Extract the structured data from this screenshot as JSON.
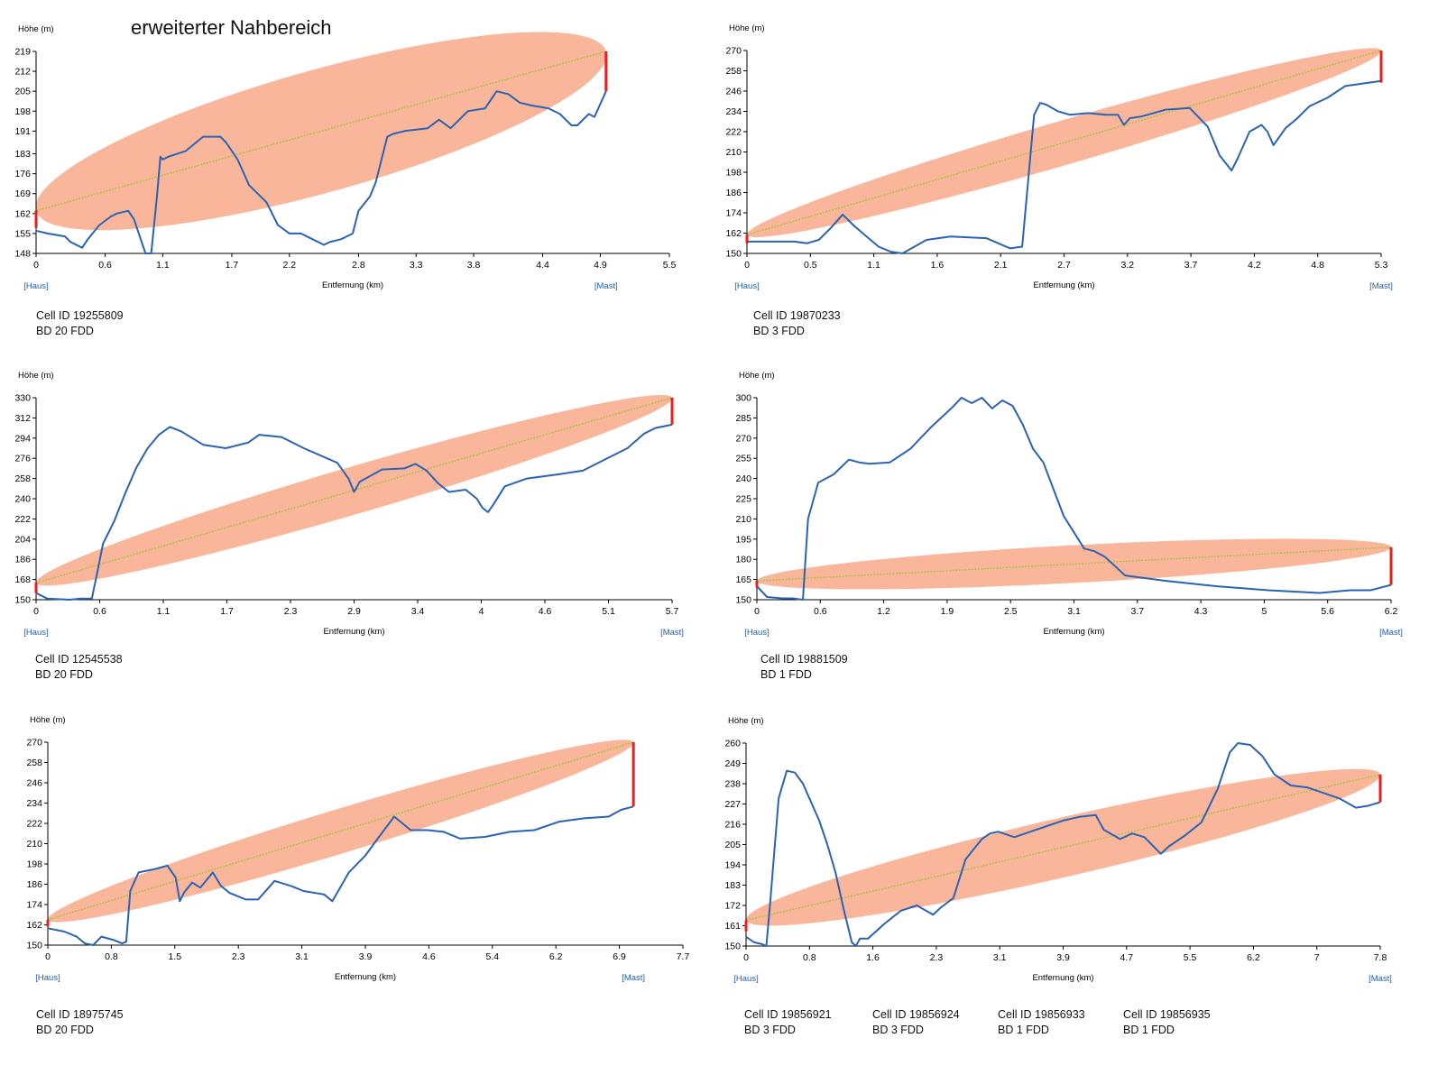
{
  "page_title": "erweiterter Nahbereich",
  "colors": {
    "profile": "#2a63b4",
    "fresnel": "#f9a98a",
    "sightline": "#a7c43a",
    "antenna": "#ee1c1c",
    "link": "#1f5fb8"
  },
  "chart_data": [
    {
      "type": "line",
      "title": "",
      "ylabel": "Höhe (m)",
      "xlabel": "Entfernung (km)",
      "left_label": "[Haus]",
      "right_label": "[Mast]",
      "xlim": [
        0,
        5.5
      ],
      "ylim": [
        148,
        219
      ],
      "xticks": [
        0,
        0.6,
        1.1,
        1.7,
        2.2,
        2.8,
        3.3,
        3.8,
        4.4,
        4.9,
        5.5
      ],
      "xtick_labels": [
        "0",
        "0.6",
        "1.1",
        "1.7",
        "2.2",
        "2.8",
        "3.3",
        "3.8",
        "4.4",
        "4.9",
        "5.5"
      ],
      "yticks": [
        148,
        155,
        162,
        169,
        176,
        183,
        191,
        198,
        205,
        212,
        219
      ],
      "ytick_labels": [
        "148",
        "155",
        "162",
        "169",
        "176",
        "183",
        "191",
        "198",
        "205",
        "212",
        "219"
      ],
      "sightline": {
        "x0": 0,
        "y0": 163,
        "x1": 4.95,
        "y1": 219
      },
      "fresnel_radius": 21.5,
      "start_mast": {
        "x": 0,
        "y_bottom": 157,
        "y_top": 163
      },
      "end_mast": {
        "x": 4.95,
        "y_bottom": 205,
        "y_top": 219
      },
      "profile": {
        "x": [
          0,
          0.1,
          0.25,
          0.3,
          0.4,
          0.45,
          0.55,
          0.65,
          0.7,
          0.8,
          0.85,
          0.95,
          1.0,
          1.05,
          1.08,
          1.1,
          1.15,
          1.3,
          1.45,
          1.6,
          1.65,
          1.75,
          1.85,
          2.0,
          2.1,
          2.2,
          2.3,
          2.4,
          2.5,
          2.55,
          2.65,
          2.75,
          2.8,
          2.9,
          2.95,
          3.05,
          3.1,
          3.2,
          3.4,
          3.5,
          3.6,
          3.75,
          3.9,
          4.0,
          4.1,
          4.2,
          4.3,
          4.45,
          4.55,
          4.65,
          4.7,
          4.8,
          4.85,
          4.95
        ],
        "y": [
          156,
          155,
          154,
          152,
          150,
          153,
          158,
          161,
          162,
          163,
          160,
          148,
          148,
          168,
          182,
          181,
          182,
          184,
          189,
          189,
          187,
          181,
          172,
          166,
          158,
          155,
          155,
          153,
          151,
          152,
          153,
          155,
          163,
          168,
          173,
          189,
          190,
          191,
          192,
          195,
          192,
          198,
          199,
          205,
          204,
          201,
          200,
          199,
          197,
          193,
          193,
          197,
          196,
          205
        ]
      }
    },
    {
      "type": "line",
      "title": "",
      "ylabel": "Höhe (m)",
      "xlabel": "Entfernung (km)",
      "left_label": "[Haus]",
      "right_label": "[Mast]",
      "xlim": [
        0,
        5.3
      ],
      "ylim": [
        150,
        270
      ],
      "xticks": [
        0,
        0.53,
        1.06,
        1.59,
        2.12,
        2.65,
        3.18,
        3.71,
        4.24,
        4.77,
        5.3
      ],
      "xtick_labels": [
        "0",
        "0.5",
        "1.1",
        "1.6",
        "2.1",
        "2.7",
        "3.2",
        "3.7",
        "4.2",
        "4.8",
        "5.3"
      ],
      "yticks": [
        150,
        162,
        174,
        186,
        198,
        210,
        222,
        234,
        246,
        258,
        270
      ],
      "ytick_labels": [
        "150",
        "162",
        "174",
        "186",
        "198",
        "210",
        "222",
        "234",
        "246",
        "258",
        "270"
      ],
      "sightline": {
        "x0": 0,
        "y0": 161,
        "x1": 5.3,
        "y1": 270
      },
      "fresnel_radius": 13,
      "start_mast": {
        "x": 0,
        "y_bottom": 156,
        "y_top": 161
      },
      "end_mast": {
        "x": 5.3,
        "y_bottom": 251,
        "y_top": 270
      },
      "profile": {
        "x": [
          0,
          0.2,
          0.4,
          0.5,
          0.6,
          0.7,
          0.8,
          0.9,
          1.0,
          1.1,
          1.2,
          1.3,
          1.5,
          1.7,
          2.0,
          2.2,
          2.3,
          2.4,
          2.45,
          2.5,
          2.6,
          2.7,
          2.85,
          3.0,
          3.1,
          3.15,
          3.2,
          3.3,
          3.5,
          3.7,
          3.85,
          3.95,
          4.05,
          4.1,
          4.2,
          4.3,
          4.35,
          4.4,
          4.5,
          4.6,
          4.7,
          4.85,
          5.0,
          5.2,
          5.3
        ],
        "y": [
          157,
          157,
          157,
          156,
          158,
          165,
          173,
          166,
          160,
          154,
          151,
          150,
          158,
          160,
          159,
          153,
          154,
          232,
          239,
          238,
          234,
          232,
          233,
          232,
          232,
          226,
          230,
          231,
          235,
          236,
          225,
          208,
          199,
          206,
          222,
          226,
          222,
          214,
          224,
          230,
          237,
          242,
          249,
          251,
          252
        ]
      }
    },
    {
      "type": "line",
      "title": "",
      "ylabel": "Höhe (m)",
      "xlabel": "Entfernung (km)",
      "left_label": "[Haus]",
      "right_label": "[Mast]",
      "xlim": [
        0,
        5.7
      ],
      "ylim": [
        150,
        330
      ],
      "xticks": [
        0,
        0.57,
        1.14,
        1.71,
        2.28,
        2.85,
        3.42,
        3.99,
        4.56,
        5.13,
        5.7
      ],
      "xtick_labels": [
        "0",
        "0.6",
        "1.1",
        "1.7",
        "2.3",
        "2.9",
        "3.4",
        "4",
        "4.6",
        "5.1",
        "5.7"
      ],
      "yticks": [
        150,
        168,
        186,
        204,
        222,
        240,
        258,
        276,
        294,
        312,
        330
      ],
      "ytick_labels": [
        "150",
        "168",
        "186",
        "204",
        "222",
        "240",
        "258",
        "276",
        "294",
        "312",
        "330"
      ],
      "sightline": {
        "x0": 0,
        "y0": 165,
        "x1": 5.7,
        "y1": 330
      },
      "fresnel_radius": 21,
      "start_mast": {
        "x": 0,
        "y_bottom": 156,
        "y_top": 165
      },
      "end_mast": {
        "x": 5.7,
        "y_bottom": 306,
        "y_top": 330
      },
      "profile": {
        "x": [
          0,
          0.1,
          0.3,
          0.4,
          0.5,
          0.55,
          0.6,
          0.7,
          0.8,
          0.9,
          1.0,
          1.1,
          1.2,
          1.3,
          1.5,
          1.7,
          1.9,
          2.0,
          2.2,
          2.4,
          2.7,
          2.8,
          2.85,
          2.9,
          3.1,
          3.3,
          3.4,
          3.5,
          3.6,
          3.7,
          3.85,
          3.95,
          4.0,
          4.05,
          4.1,
          4.2,
          4.4,
          4.7,
          4.9,
          5.1,
          5.3,
          5.45,
          5.55,
          5.7
        ],
        "y": [
          156,
          151,
          150,
          151,
          151,
          175,
          200,
          220,
          245,
          268,
          285,
          297,
          304,
          300,
          288,
          285,
          290,
          297,
          295,
          285,
          272,
          258,
          246,
          255,
          266,
          267,
          271,
          265,
          254,
          246,
          248,
          240,
          232,
          228,
          235,
          251,
          258,
          262,
          265,
          275,
          285,
          298,
          303,
          306
        ]
      }
    },
    {
      "type": "line",
      "title": "",
      "ylabel": "Höhe (m)",
      "xlabel": "Entfernung (km)",
      "left_label": "[Haus]",
      "right_label": "[Mast]",
      "xlim": [
        0,
        6.2
      ],
      "ylim": [
        150,
        300
      ],
      "xticks": [
        0,
        0.62,
        1.24,
        1.86,
        2.48,
        3.1,
        3.72,
        4.34,
        4.96,
        5.58,
        6.2
      ],
      "xtick_labels": [
        "0",
        "0.6",
        "1.2",
        "1.9",
        "2.5",
        "3.1",
        "3.7",
        "4.3",
        "5",
        "5.6",
        "6.2"
      ],
      "yticks": [
        150,
        165,
        180,
        195,
        210,
        225,
        240,
        255,
        270,
        285,
        300
      ],
      "ytick_labels": [
        "150",
        "165",
        "180",
        "195",
        "210",
        "225",
        "240",
        "255",
        "270",
        "285",
        "300"
      ],
      "sightline": {
        "x0": 0,
        "y0": 164,
        "x1": 6.2,
        "y1": 189
      },
      "fresnel_radius": 14,
      "start_mast": {
        "x": 0,
        "y_bottom": 159,
        "y_top": 164
      },
      "end_mast": {
        "x": 6.2,
        "y_bottom": 161,
        "y_top": 189
      },
      "profile": {
        "x": [
          0,
          0.1,
          0.25,
          0.35,
          0.45,
          0.5,
          0.6,
          0.75,
          0.9,
          1.0,
          1.1,
          1.3,
          1.5,
          1.7,
          1.9,
          2.0,
          2.1,
          2.2,
          2.3,
          2.4,
          2.5,
          2.6,
          2.7,
          2.8,
          2.9,
          3.0,
          3.1,
          3.2,
          3.3,
          3.4,
          3.5,
          3.6,
          3.8,
          4.0,
          4.5,
          5.0,
          5.5,
          5.8,
          6.0,
          6.2
        ],
        "y": [
          160,
          152,
          151,
          151,
          150,
          210,
          237,
          243,
          254,
          252,
          251,
          252,
          262,
          278,
          292,
          300,
          296,
          300,
          292,
          298,
          294,
          280,
          262,
          252,
          232,
          212,
          200,
          188,
          186,
          182,
          175,
          168,
          166,
          164,
          160,
          157,
          155,
          157,
          157,
          161
        ]
      }
    },
    {
      "type": "line",
      "title": "",
      "ylabel": "Höhe (m)",
      "xlabel": "Entfernung (km)",
      "left_label": "[Haus]",
      "right_label": "[Mast]",
      "xlim": [
        0,
        7.7
      ],
      "ylim": [
        150,
        270
      ],
      "xticks": [
        0,
        0.77,
        1.54,
        2.31,
        3.08,
        3.85,
        4.62,
        5.39,
        6.16,
        6.93,
        7.7
      ],
      "xtick_labels": [
        "0",
        "0.8",
        "1.5",
        "2.3",
        "3.1",
        "3.9",
        "4.6",
        "5.4",
        "6.2",
        "6.9",
        "7.7"
      ],
      "yticks": [
        150,
        162,
        174,
        186,
        198,
        210,
        222,
        234,
        246,
        258,
        270
      ],
      "ytick_labels": [
        "150",
        "162",
        "174",
        "186",
        "198",
        "210",
        "222",
        "234",
        "246",
        "258",
        "270"
      ],
      "sightline": {
        "x0": 0,
        "y0": 165,
        "x1": 7.1,
        "y1": 270
      },
      "fresnel_radius": 13,
      "start_mast": {
        "x": 0,
        "y_bottom": 161,
        "y_top": 165
      },
      "end_mast": {
        "x": 7.1,
        "y_bottom": 232,
        "y_top": 270
      },
      "profile": {
        "x": [
          0,
          0.2,
          0.35,
          0.45,
          0.55,
          0.65,
          0.8,
          0.9,
          0.95,
          1.0,
          1.1,
          1.3,
          1.45,
          1.55,
          1.6,
          1.65,
          1.75,
          1.85,
          2.0,
          2.1,
          2.2,
          2.4,
          2.55,
          2.75,
          2.95,
          3.1,
          3.35,
          3.45,
          3.65,
          3.85,
          4.0,
          4.2,
          4.4,
          4.6,
          4.8,
          5.0,
          5.3,
          5.6,
          5.9,
          6.2,
          6.5,
          6.8,
          6.95,
          7.1
        ],
        "y": [
          160,
          158,
          155,
          151,
          150,
          155,
          153,
          151,
          152,
          182,
          193,
          195,
          197,
          190,
          176,
          181,
          187,
          184,
          193,
          185,
          181,
          177,
          177,
          188,
          185,
          182,
          180,
          176,
          193,
          203,
          213,
          226,
          218,
          218,
          217,
          213,
          214,
          217,
          218,
          223,
          225,
          226,
          230,
          232
        ]
      }
    },
    {
      "type": "line",
      "title": "",
      "ylabel": "Höhe (m)",
      "xlabel": "Entfernung (km)",
      "left_label": "[Haus]",
      "right_label": "[Mast]",
      "xlim": [
        0,
        7.8
      ],
      "ylim": [
        150,
        260
      ],
      "xticks": [
        0,
        0.78,
        1.56,
        2.34,
        3.12,
        3.9,
        4.68,
        5.46,
        6.24,
        7.02,
        7.8
      ],
      "xtick_labels": [
        "0",
        "0.8",
        "1.6",
        "2.3",
        "3.1",
        "3.9",
        "4.7",
        "5.5",
        "6.2",
        "7",
        "7.8"
      ],
      "yticks": [
        150,
        161,
        172,
        183,
        194,
        205,
        216,
        227,
        238,
        249,
        260
      ],
      "ytick_labels": [
        "150",
        "161",
        "172",
        "183",
        "194",
        "205",
        "216",
        "227",
        "238",
        "249",
        "260"
      ],
      "sightline": {
        "x0": 0,
        "y0": 164,
        "x1": 7.8,
        "y1": 243
      },
      "fresnel_radius": 16,
      "start_mast": {
        "x": 0,
        "y_bottom": 158,
        "y_top": 164
      },
      "end_mast": {
        "x": 7.8,
        "y_bottom": 228,
        "y_top": 243
      },
      "profile": {
        "x": [
          0,
          0.1,
          0.2,
          0.25,
          0.3,
          0.4,
          0.5,
          0.6,
          0.7,
          0.8,
          0.9,
          1.0,
          1.1,
          1.2,
          1.3,
          1.35,
          1.4,
          1.5,
          1.7,
          1.9,
          2.1,
          2.3,
          2.4,
          2.55,
          2.7,
          2.9,
          3.0,
          3.1,
          3.3,
          3.5,
          3.7,
          3.9,
          4.1,
          4.3,
          4.4,
          4.6,
          4.75,
          4.9,
          5.1,
          5.2,
          5.4,
          5.6,
          5.8,
          5.95,
          6.05,
          6.2,
          6.35,
          6.5,
          6.7,
          6.9,
          7.1,
          7.3,
          7.5,
          7.65,
          7.8
        ],
        "y": [
          155,
          152,
          151,
          150,
          175,
          230,
          245,
          244,
          238,
          228,
          218,
          205,
          190,
          170,
          152,
          150,
          154,
          154,
          162,
          169,
          172,
          167,
          171,
          176,
          197,
          208,
          211,
          212,
          209,
          212,
          215,
          218,
          220,
          221,
          213,
          208,
          211,
          209,
          200,
          204,
          210,
          217,
          235,
          255,
          260,
          259,
          253,
          243,
          237,
          236,
          233,
          230,
          225,
          226,
          228
        ]
      }
    }
  ],
  "cell_groups": [
    [
      {
        "cell_id": "Cell ID 19255809",
        "band": "BD 20 FDD"
      }
    ],
    [
      {
        "cell_id": "Cell ID 19870233",
        "band": "BD 3 FDD"
      }
    ],
    [
      {
        "cell_id": "Cell ID 12545538",
        "band": "BD 20 FDD"
      }
    ],
    [
      {
        "cell_id": "Cell ID 19881509",
        "band": "BD 1 FDD"
      }
    ],
    [
      {
        "cell_id": "Cell ID 18975745",
        "band": "BD 20 FDD"
      }
    ],
    [
      {
        "cell_id": "Cell ID 19856921",
        "band": "BD 3 FDD"
      },
      {
        "cell_id": "Cell ID 19856924",
        "band": "BD 3 FDD"
      },
      {
        "cell_id": "Cell ID 19856933",
        "band": "BD 1 FDD"
      },
      {
        "cell_id": "Cell ID 19856935",
        "band": "BD 1 FDD"
      }
    ]
  ]
}
